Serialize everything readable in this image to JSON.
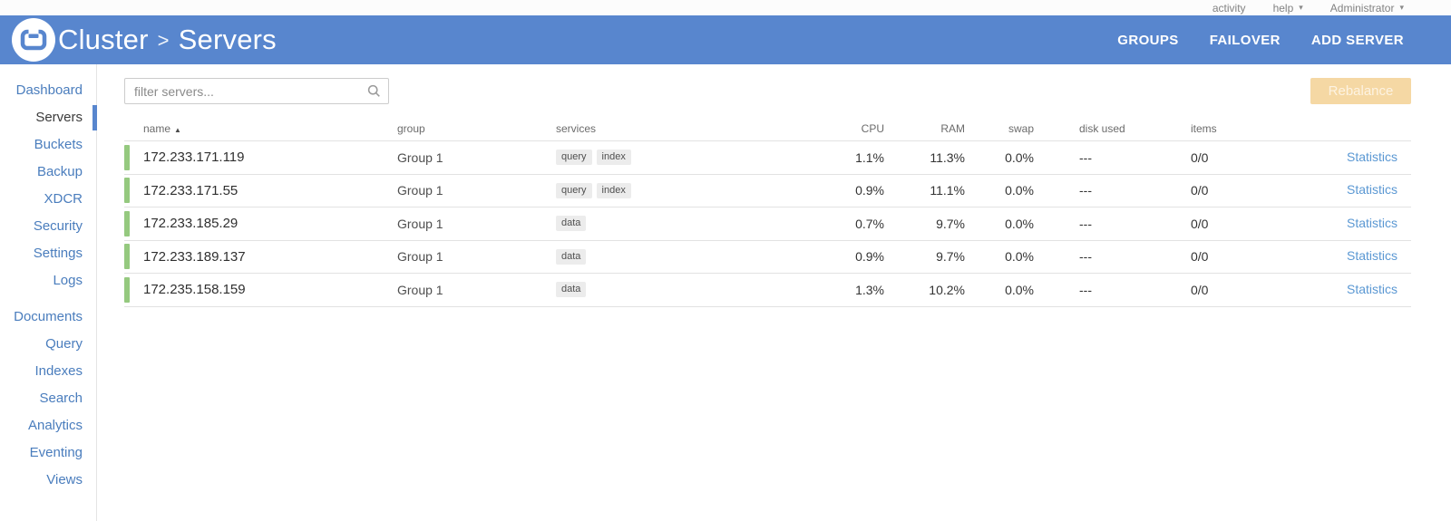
{
  "colors": {
    "header_blue": "#5886ce",
    "sidebar_link_blue": "#4a7dbd",
    "stats_link_blue": "#5b98d3",
    "healthy_green": "#95c97f",
    "rebalance_bg": "#f5d8a4",
    "rebalance_text": "#fdf3e2"
  },
  "topbar": {
    "activity_label": "activity",
    "help_label": "help",
    "user_label": "Administrator"
  },
  "header": {
    "cluster_label": "Cluster",
    "separator": ">",
    "page_label": "Servers",
    "actions": [
      {
        "name": "groups-button",
        "label": "GROUPS"
      },
      {
        "name": "failover-button",
        "label": "FAILOVER"
      },
      {
        "name": "add-server-button",
        "label": "ADD SERVER"
      }
    ]
  },
  "sidebar": {
    "active": "Servers",
    "primary": [
      "Dashboard",
      "Servers",
      "Buckets",
      "Backup",
      "XDCR",
      "Security",
      "Settings",
      "Logs"
    ],
    "secondary": [
      "Documents",
      "Query",
      "Indexes",
      "Search",
      "Analytics",
      "Eventing",
      "Views"
    ]
  },
  "toolbar": {
    "filter_placeholder": "filter servers...",
    "rebalance_label": "Rebalance"
  },
  "table": {
    "columns": [
      {
        "key": "name",
        "label": "name",
        "sort": "asc"
      },
      {
        "key": "group",
        "label": "group"
      },
      {
        "key": "services",
        "label": "services"
      },
      {
        "key": "cpu",
        "label": "CPU"
      },
      {
        "key": "ram",
        "label": "RAM"
      },
      {
        "key": "swap",
        "label": "swap"
      },
      {
        "key": "disk",
        "label": "disk used"
      },
      {
        "key": "items",
        "label": "items"
      },
      {
        "key": "stats",
        "label": ""
      }
    ],
    "rows": [
      {
        "name": "172.233.171.119",
        "group": "Group 1",
        "services": [
          "query",
          "index"
        ],
        "cpu": "1.1%",
        "ram": "11.3%",
        "swap": "0.0%",
        "disk": "---",
        "items": "0/0",
        "stats": "Statistics"
      },
      {
        "name": "172.233.171.55",
        "group": "Group 1",
        "services": [
          "query",
          "index"
        ],
        "cpu": "0.9%",
        "ram": "11.1%",
        "swap": "0.0%",
        "disk": "---",
        "items": "0/0",
        "stats": "Statistics"
      },
      {
        "name": "172.233.185.29",
        "group": "Group 1",
        "services": [
          "data"
        ],
        "cpu": "0.7%",
        "ram": "9.7%",
        "swap": "0.0%",
        "disk": "---",
        "items": "0/0",
        "stats": "Statistics"
      },
      {
        "name": "172.233.189.137",
        "group": "Group 1",
        "services": [
          "data"
        ],
        "cpu": "0.9%",
        "ram": "9.7%",
        "swap": "0.0%",
        "disk": "---",
        "items": "0/0",
        "stats": "Statistics"
      },
      {
        "name": "172.235.158.159",
        "group": "Group 1",
        "services": [
          "data"
        ],
        "cpu": "1.3%",
        "ram": "10.2%",
        "swap": "0.0%",
        "disk": "---",
        "items": "0/0",
        "stats": "Statistics"
      }
    ]
  }
}
